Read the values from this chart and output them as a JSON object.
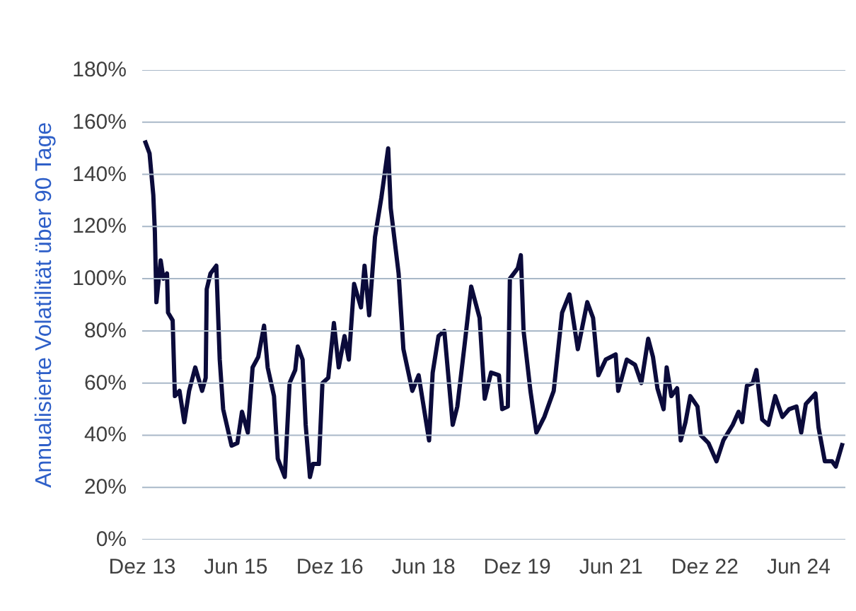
{
  "chart_data": {
    "type": "line",
    "ylabel": "Annualisierte Volatilität über 90 Tage",
    "xlim": [
      "2013-12-01",
      "2025-03-01"
    ],
    "xticks": [
      {
        "value": "2013-12-01",
        "label": "Dez 13"
      },
      {
        "value": "2015-06-01",
        "label": "Jun 15"
      },
      {
        "value": "2016-12-01",
        "label": "Dez 16"
      },
      {
        "value": "2018-06-01",
        "label": "Jun 18"
      },
      {
        "value": "2019-12-01",
        "label": "Dez 19"
      },
      {
        "value": "2021-06-01",
        "label": "Jun 21"
      },
      {
        "value": "2022-12-01",
        "label": "Dez 22"
      },
      {
        "value": "2024-06-01",
        "label": "Jun 24"
      }
    ],
    "ylim": [
      0,
      180
    ],
    "yticks": [
      {
        "value": 0,
        "label": "0%"
      },
      {
        "value": 20,
        "label": "20%"
      },
      {
        "value": 40,
        "label": "40%"
      },
      {
        "value": 60,
        "label": "60%"
      },
      {
        "value": 80,
        "label": "80%"
      },
      {
        "value": 100,
        "label": "100%"
      },
      {
        "value": 120,
        "label": "120%"
      },
      {
        "value": 140,
        "label": "140%"
      },
      {
        "value": 160,
        "label": "160%"
      },
      {
        "value": 180,
        "label": "180%"
      }
    ],
    "grid": "y",
    "marker": "none",
    "line_style": "solid",
    "x": [
      "2013-12-16",
      "2014-01-13",
      "2014-02-04",
      "2014-02-13",
      "2014-02-22",
      "2014-03-19",
      "2014-04-04",
      "2014-04-25",
      "2014-05-01",
      "2014-05-28",
      "2014-06-10",
      "2014-07-07",
      "2014-08-04",
      "2014-09-01",
      "2014-10-07",
      "2014-11-16",
      "2014-12-07",
      "2014-12-13",
      "2015-01-04",
      "2015-02-07",
      "2015-02-27",
      "2015-03-19",
      "2015-05-07",
      "2015-06-10",
      "2015-07-07",
      "2015-08-10",
      "2015-09-07",
      "2015-10-10",
      "2015-11-13",
      "2015-12-04",
      "2016-01-10",
      "2016-02-01",
      "2016-03-13",
      "2016-04-10",
      "2016-05-13",
      "2016-05-28",
      "2016-06-25",
      "2016-07-13",
      "2016-08-07",
      "2016-08-25",
      "2016-09-28",
      "2016-10-19",
      "2016-11-22",
      "2016-12-25",
      "2017-01-22",
      "2017-02-25",
      "2017-03-22",
      "2017-04-22",
      "2017-06-01",
      "2017-06-22",
      "2017-07-19",
      "2017-08-22",
      "2017-09-28",
      "2017-11-07",
      "2017-11-22",
      "2018-01-07",
      "2018-02-04",
      "2018-03-28",
      "2018-05-04",
      "2018-07-04",
      "2018-07-25",
      "2018-08-28",
      "2018-10-01",
      "2018-11-19",
      "2018-12-16",
      "2019-01-28",
      "2019-03-07",
      "2019-04-25",
      "2019-05-25",
      "2019-07-01",
      "2019-08-16",
      "2019-09-04",
      "2019-10-07",
      "2019-10-19",
      "2019-12-04",
      "2019-12-22",
      "2020-01-07",
      "2020-02-16",
      "2020-03-22",
      "2020-05-07",
      "2020-07-01",
      "2020-08-19",
      "2020-10-01",
      "2020-11-19",
      "2021-01-13",
      "2021-02-16",
      "2021-03-19",
      "2021-05-01",
      "2021-06-28",
      "2021-07-13",
      "2021-09-01",
      "2021-10-19",
      "2021-11-25",
      "2022-01-04",
      "2022-02-01",
      "2022-02-27",
      "2022-04-04",
      "2022-04-22",
      "2022-05-19",
      "2022-06-22",
      "2022-07-13",
      "2022-08-10",
      "2022-09-07",
      "2022-10-19",
      "2022-11-07",
      "2022-12-22",
      "2023-02-07",
      "2023-03-19",
      "2023-05-13",
      "2023-06-16",
      "2023-07-07",
      "2023-08-04",
      "2023-09-07",
      "2023-09-28",
      "2023-11-01",
      "2023-12-07",
      "2024-01-16",
      "2024-02-27",
      "2024-04-07",
      "2024-05-19",
      "2024-06-16",
      "2024-07-13",
      "2024-09-07",
      "2024-09-25",
      "2024-11-01",
      "2024-12-13",
      "2025-01-04",
      "2025-02-13"
    ],
    "series": [
      {
        "color": "#0b0b3b",
        "values": [
          153,
          148,
          132,
          118,
          91,
          107,
          100,
          102,
          87,
          84,
          55,
          57,
          45,
          57,
          66,
          57,
          62,
          96,
          102,
          105,
          69,
          50,
          36,
          37,
          49,
          41,
          66,
          70,
          82,
          66,
          55,
          31,
          24,
          60,
          65,
          74,
          69,
          44,
          24,
          29,
          29,
          60,
          62,
          83,
          66,
          78,
          69,
          98,
          89,
          105,
          86,
          116,
          131,
          150,
          127,
          102,
          73,
          57,
          63,
          38,
          64,
          78,
          80,
          44,
          51,
          75,
          97,
          85,
          54,
          64,
          63,
          50,
          51,
          100,
          104,
          109,
          80,
          57,
          41,
          47,
          57,
          87,
          94,
          73,
          91,
          85,
          63,
          69,
          71,
          57,
          69,
          67,
          60,
          77,
          70,
          58,
          50,
          66,
          55,
          58,
          38,
          45,
          55,
          51,
          40,
          37,
          30,
          38,
          44,
          49,
          45,
          59,
          60,
          65,
          46,
          44,
          55,
          47,
          50,
          51,
          41,
          52,
          56,
          43,
          30,
          30,
          28,
          37
        ]
      }
    ]
  }
}
